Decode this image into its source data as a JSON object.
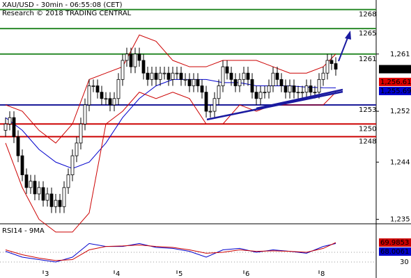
{
  "chart_data": [
    {
      "type": "candlestick",
      "title": "XAU/USD - 30min - 06:55:08 (CET)",
      "subtitle": "Research © 2018 TRADING CENTRAL",
      "categories": [
        null,
        null,
        null,
        null,
        null,
        null,
        null,
        null,
        null,
        "3",
        null,
        null,
        null,
        null,
        null,
        null,
        null,
        null,
        null,
        null,
        null,
        null,
        null,
        null,
        null,
        null,
        "4",
        null,
        null,
        null,
        null,
        null,
        null,
        null,
        null,
        null,
        null,
        null,
        null,
        null,
        null,
        "5",
        null,
        null,
        null,
        null,
        null,
        null,
        null,
        null,
        null,
        null,
        null,
        null,
        null,
        null,
        null,
        "6",
        null,
        null,
        null,
        null,
        null,
        null,
        null,
        null,
        null,
        null,
        null,
        null,
        null,
        null,
        null,
        null,
        null,
        "8",
        null,
        null,
        null,
        null
      ],
      "open": [
        1249,
        1250,
        1251,
        1248,
        1245,
        1242,
        1240,
        1241,
        1239,
        1240,
        1238,
        1239,
        1237,
        1238,
        1237,
        1240,
        1242,
        1245,
        1247,
        1250,
        1253,
        1256,
        1256,
        1255,
        1254,
        1254,
        1253,
        1254,
        1257,
        1260,
        1261,
        1259,
        1261,
        1260,
        1258,
        1257,
        1258,
        1257,
        1258,
        1258,
        1257,
        1258,
        1258,
        1257,
        1257,
        1256,
        1257,
        1256,
        1255,
        1252,
        1252,
        1254,
        1256,
        1259,
        1258,
        1257,
        1256,
        1257,
        1258,
        1257,
        1255,
        1254,
        1255,
        1255,
        1256,
        1258,
        1257,
        1256,
        1255,
        1256,
        1255,
        1255,
        1255,
        1256,
        1255,
        1255,
        1257,
        1258,
        1260,
        1259.5
      ],
      "high": [
        1251,
        1252,
        1252,
        1249,
        1246,
        1243,
        1242,
        1242,
        1241,
        1241,
        1240,
        1240,
        1239,
        1239,
        1241,
        1243,
        1246,
        1248,
        1251,
        1254,
        1257,
        1257,
        1257,
        1256,
        1255,
        1255,
        1255,
        1258,
        1261,
        1262,
        1262,
        1262,
        1262,
        1261,
        1259,
        1259,
        1259,
        1259,
        1259,
        1259,
        1259,
        1259,
        1259,
        1258,
        1258,
        1258,
        1258,
        1257,
        1256,
        1253,
        1255,
        1257,
        1260,
        1260,
        1259,
        1258,
        1258,
        1259,
        1259,
        1258,
        1256,
        1256,
        1256,
        1257,
        1259,
        1259,
        1258,
        1257,
        1257,
        1257,
        1256,
        1256,
        1257,
        1257,
        1256,
        1258,
        1259,
        1261,
        1261,
        1260.5
      ],
      "low": [
        1248,
        1249,
        1247,
        1244,
        1241,
        1239,
        1239,
        1238,
        1238,
        1237,
        1237,
        1236,
        1236,
        1236,
        1236,
        1239,
        1241,
        1244,
        1246,
        1249,
        1252,
        1255,
        1254,
        1253,
        1253,
        1252,
        1252,
        1253,
        1256,
        1259,
        1258,
        1258,
        1259,
        1257,
        1256,
        1256,
        1256,
        1256,
        1257,
        1256,
        1256,
        1257,
        1256,
        1256,
        1255,
        1255,
        1255,
        1254,
        1251,
        1251,
        1251,
        1253,
        1255,
        1257,
        1256,
        1255,
        1255,
        1256,
        1256,
        1254,
        1253,
        1253,
        1254,
        1254,
        1255,
        1256,
        1255,
        1254,
        1254,
        1254,
        1254,
        1254,
        1254,
        1254,
        1254,
        1254,
        1256,
        1257,
        1258.5,
        1257.6
      ],
      "close": [
        1250,
        1251,
        1248,
        1245,
        1242,
        1240,
        1241,
        1239,
        1240,
        1238,
        1239,
        1237,
        1238,
        1237,
        1240,
        1242,
        1245,
        1247,
        1250,
        1253,
        1256,
        1256,
        1255,
        1254,
        1254,
        1253,
        1254,
        1257,
        1260,
        1261,
        1259,
        1261,
        1260,
        1258,
        1257,
        1258,
        1257,
        1258,
        1258,
        1257,
        1258,
        1258,
        1257,
        1257,
        1256,
        1257,
        1256,
        1255,
        1252,
        1252,
        1254,
        1256,
        1259,
        1258,
        1257,
        1256,
        1257,
        1258,
        1257,
        1255,
        1254,
        1255,
        1255,
        1256,
        1258,
        1257,
        1256,
        1255,
        1256,
        1255,
        1255,
        1255,
        1256,
        1255,
        1255,
        1257,
        1258,
        1260,
        1259.5,
        1258.62
      ],
      "series": [
        {
          "color": "#0000cc",
          "x": [
            0,
            4,
            8,
            12,
            16,
            20,
            24,
            28,
            32,
            36,
            40,
            44,
            48,
            52,
            56,
            60,
            64,
            68,
            72,
            76,
            79
          ],
          "values": [
            1251,
            1249,
            1246,
            1244,
            1243,
            1244,
            1247,
            1251,
            1254,
            1256,
            1257,
            1257,
            1257,
            1256.5,
            1256.5,
            1256,
            1256,
            1256,
            1255.8,
            1255.7,
            1255.69
          ]
        },
        {
          "color": "#cc0000",
          "x": [
            0,
            4,
            8,
            12,
            16,
            20,
            24,
            28,
            32,
            36,
            40,
            44,
            48,
            52,
            56,
            60,
            64,
            68,
            72,
            76,
            79
          ],
          "values": [
            1253,
            1252,
            1249,
            1247,
            1250,
            1257,
            1258,
            1259,
            1264,
            1263,
            1260,
            1259,
            1259,
            1260,
            1260,
            1260,
            1259,
            1258,
            1258,
            1259,
            1261
          ]
        },
        {
          "color": "#cc0000",
          "x": [
            0,
            4,
            8,
            12,
            16,
            20,
            24,
            28,
            32,
            36,
            40,
            44,
            48,
            52,
            56,
            60,
            64,
            68,
            72,
            76,
            79
          ],
          "values": [
            1247,
            1240,
            1235,
            1233,
            1233,
            1236,
            1250,
            1252,
            1255,
            1254,
            1255,
            1254,
            1250,
            1250,
            1253,
            1252,
            1253,
            1253,
            1253,
            1253,
            1255
          ]
        }
      ],
      "levels": [
        {
          "value": 1268,
          "color": "#2a8a2a"
        },
        {
          "value": 1265,
          "color": "#2a8a2a"
        },
        {
          "value": 1261,
          "color": "#2a8a2a"
        },
        {
          "value": 1253,
          "color": "#1a1a99"
        },
        {
          "value": 1250,
          "color": "#cc0000"
        },
        {
          "value": 1248,
          "color": "#cc0000"
        }
      ],
      "price_markers": [
        {
          "value": 1258.62,
          "label": "1,258.62",
          "color": "#000000"
        },
        {
          "value": 1256.61,
          "label": "1,256.61",
          "color": "#dd0000"
        },
        {
          "value": 1255.69,
          "label": "1,255.69",
          "color": "#0000cc"
        }
      ],
      "ylim": [
        1234.3,
        1269.5
      ],
      "yticks": [
        {
          "value": 1261,
          "label": "1,261"
        },
        {
          "value": 1252,
          "label": "1,252"
        },
        {
          "value": 1244,
          "label": "1,244"
        },
        {
          "value": 1235,
          "label": "1,235"
        }
      ]
    },
    {
      "type": "line",
      "title": "RSI14 - 9MA",
      "series": [
        {
          "color": "#0000cc",
          "x": [
            0,
            4,
            8,
            12,
            16,
            20,
            24,
            28,
            32,
            36,
            40,
            44,
            48,
            52,
            56,
            60,
            64,
            68,
            72,
            76,
            79
          ],
          "values": [
            52,
            40,
            35,
            30,
            40,
            68,
            62,
            62,
            68,
            60,
            58,
            52,
            40,
            55,
            58,
            50,
            55,
            52,
            48,
            62,
            68.0061
          ]
        },
        {
          "color": "#cc0000",
          "x": [
            0,
            4,
            8,
            12,
            16,
            20,
            24,
            28,
            32,
            36,
            40,
            44,
            48,
            52,
            56,
            60,
            64,
            68,
            72,
            76,
            79
          ],
          "values": [
            55,
            45,
            38,
            33,
            35,
            55,
            62,
            63,
            65,
            62,
            60,
            55,
            48,
            50,
            55,
            52,
            53,
            52,
            50,
            58,
            69.9853
          ]
        }
      ],
      "ylim": [
        0,
        100
      ],
      "yticks": [
        50,
        30
      ]
    }
  ]
}
